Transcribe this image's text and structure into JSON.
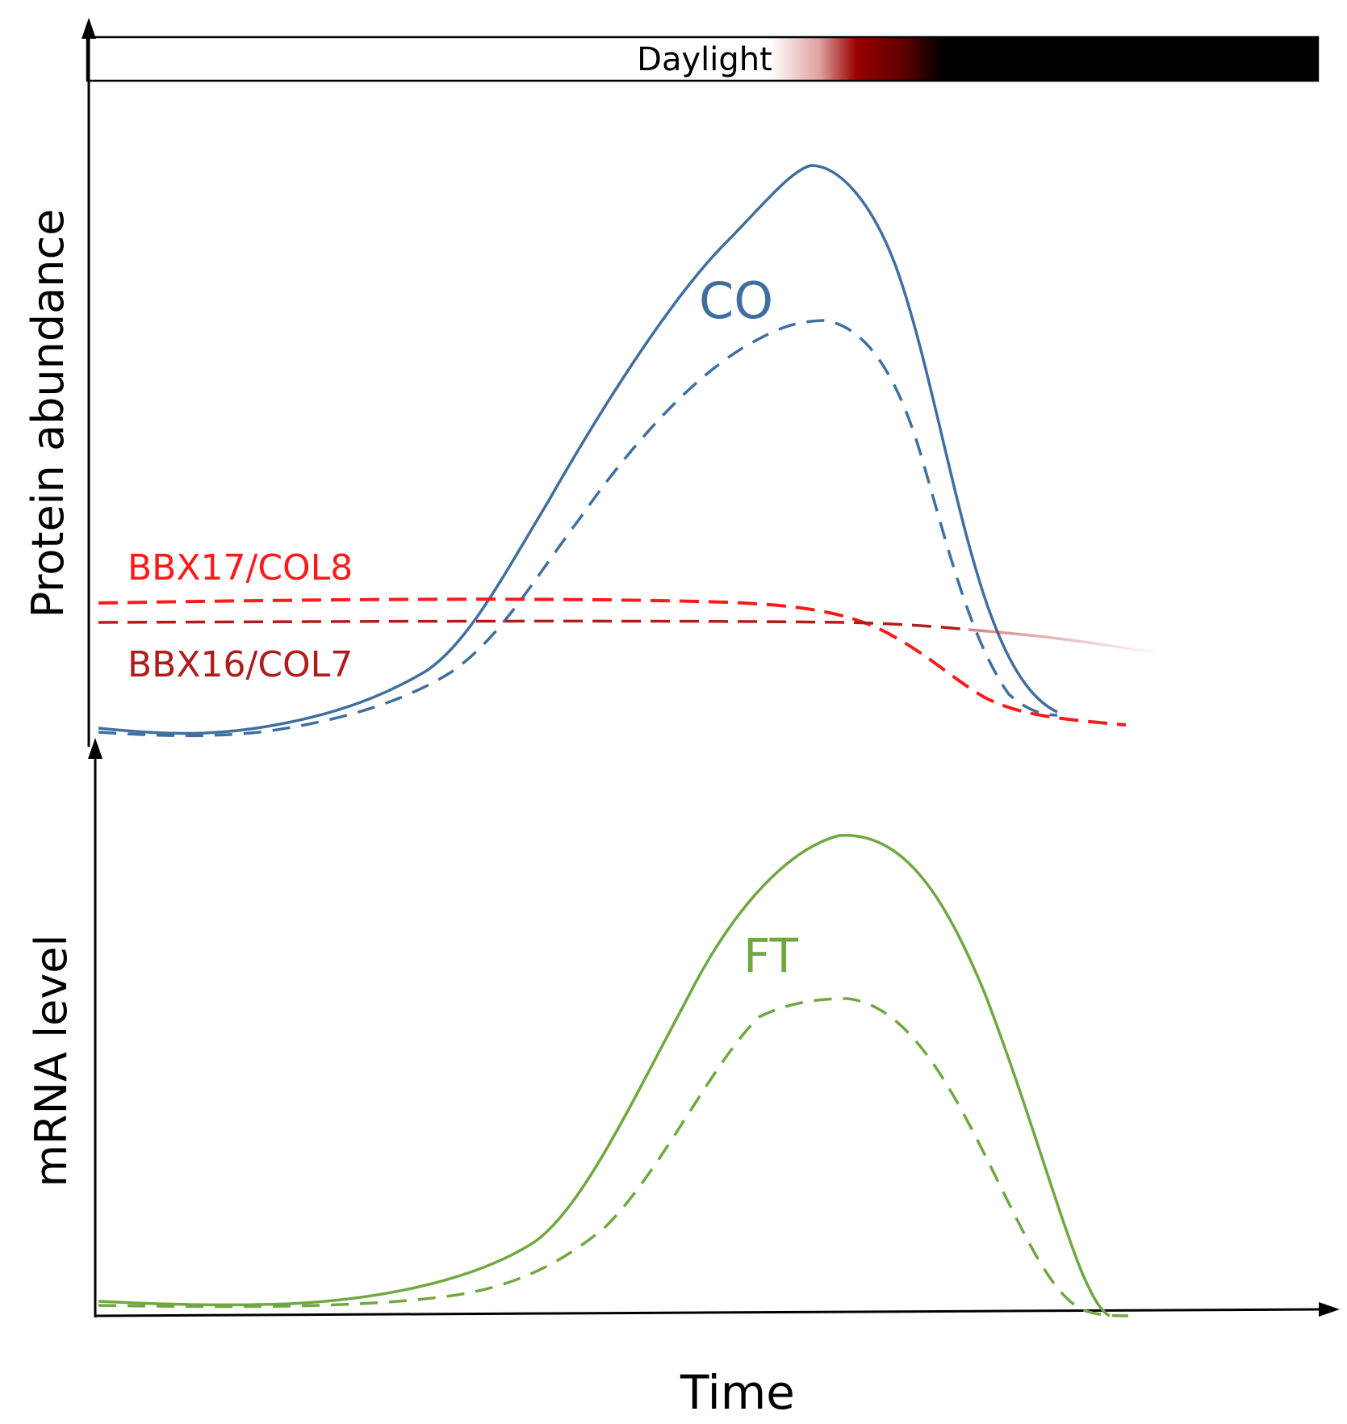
{
  "figure": {
    "daylight_label": "Daylight",
    "top_panel": {
      "ylabel": "Protein abundance",
      "curves": [
        {
          "label": "CO",
          "color": "#3f6f9f"
        },
        {
          "label": "BBX17/COL8",
          "color": "#ff1a1a"
        },
        {
          "label": "BBX16/COL7",
          "color": "#b01c1c"
        }
      ]
    },
    "bottom_panel": {
      "ylabel": "mRNA level",
      "xlabel": "Time",
      "curves": [
        {
          "label": "FT",
          "color": "#6fa83f"
        }
      ]
    }
  }
}
